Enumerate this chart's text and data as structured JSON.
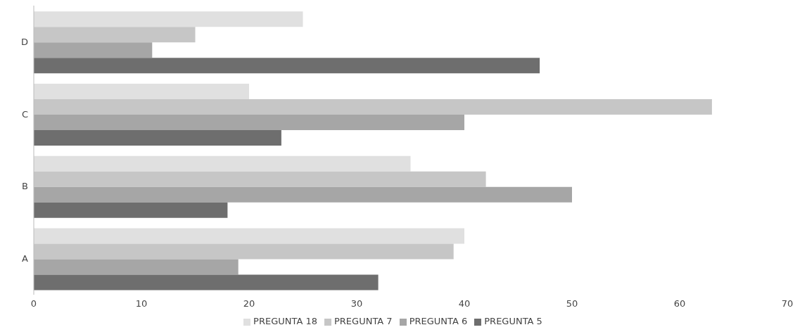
{
  "chart_data": {
    "type": "bar",
    "orientation": "horizontal",
    "categories": [
      "D",
      "C",
      "B",
      "A"
    ],
    "series": [
      {
        "name": "PREGUNTA 18",
        "color": "#e0e0e0",
        "values": [
          25,
          20,
          35,
          40
        ]
      },
      {
        "name": "PREGUNTA 7",
        "color": "#c6c6c6",
        "values": [
          15,
          63,
          42,
          39
        ]
      },
      {
        "name": "PREGUNTA 6",
        "color": "#a6a6a6",
        "values": [
          11,
          40,
          50,
          19
        ]
      },
      {
        "name": "PREGUNTA 5",
        "color": "#6e6e6e",
        "values": [
          47,
          23,
          18,
          32
        ]
      }
    ],
    "xlim": [
      0,
      70
    ],
    "xticks": [
      0,
      10,
      20,
      30,
      40,
      50,
      60,
      70
    ],
    "grid": false,
    "legend": "bottom"
  }
}
